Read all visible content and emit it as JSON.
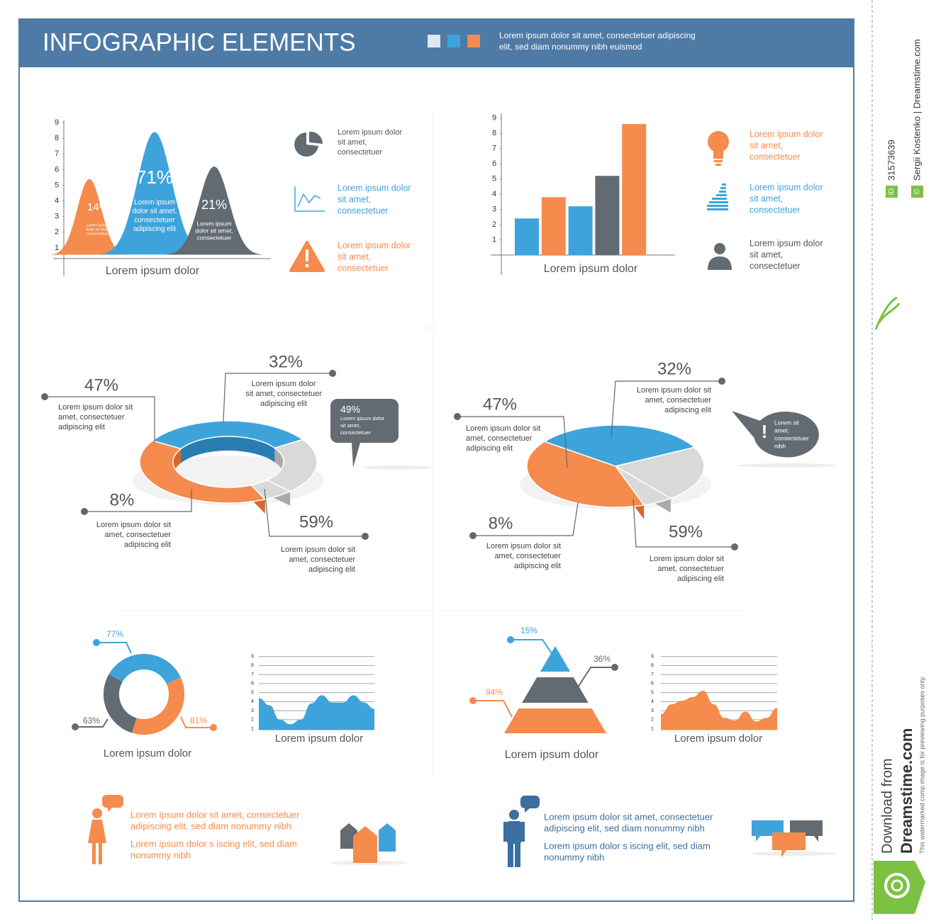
{
  "header": {
    "title": "INFOGRAPHIC ELEMENTS",
    "text": [
      "Lorem ipsum dolor sit amet, consectetuer adipiscing",
      "elit, sed diam nonummy nibh euismod"
    ]
  },
  "chart_data": [
    {
      "type": "bell",
      "values": [
        5.4,
        8.4,
        6.2
      ],
      "colors": [
        "#f58b4c",
        "#3ea3db",
        "#636b72"
      ],
      "ylim": [
        0,
        9.5
      ],
      "yticks": [
        1,
        2,
        3,
        4,
        5,
        6,
        7,
        8,
        9
      ],
      "xlabel": "Lorem ipsum dolor",
      "annotations": [
        {
          "label": "14%",
          "caption": [
            "Lorem ipsum",
            "dolor sit amet,",
            "consectetuer"
          ]
        },
        {
          "label": "71%",
          "caption": [
            "Lorem ipsum",
            "dolor sit amet,",
            "consectetuer",
            "adipiscing elit"
          ]
        },
        {
          "label": "21%",
          "caption": [
            "Lorem ipsum",
            "dolor sit amet,",
            "consectetuer"
          ]
        }
      ]
    },
    {
      "type": "bar",
      "values": [
        2.4,
        3.8,
        3.2,
        5.2,
        8.6
      ],
      "colors": [
        "#3ea3db",
        "#f58b4c",
        "#3ea3db",
        "#636b72",
        "#f58b4c"
      ],
      "ylim": [
        0,
        9.5
      ],
      "yticks": [
        1,
        2,
        3,
        4,
        5,
        6,
        7,
        8,
        9
      ],
      "xlabel": "Lorem ipsum dolor"
    },
    {
      "type": "donut3d",
      "values": [
        47,
        32,
        8,
        59
      ],
      "value_labels": [
        "47%",
        "32%",
        "8%",
        "59%"
      ],
      "colors": [
        "#3ea3db",
        "#d9d9d9",
        "#d9d9d9",
        "#f58b4c"
      ],
      "captions": [
        [
          "Lorem ipsum dolor sit",
          "amet, consectetuer",
          "adipiscing elit"
        ],
        [
          "Lorem ipsum dolor",
          "sit amet, consectetuer",
          "adipiscing elit"
        ],
        [
          "Lorem ipsum dolor sit",
          "amet, consectetuer",
          "adipiscing elit"
        ],
        [
          "Lorem ipsum dolor sit",
          "amet, consectetuer",
          "adipiscing elit"
        ]
      ],
      "callout": {
        "label": "49%",
        "text": [
          "Lorem ipsum dolor",
          "sit amet,",
          "consectetuer"
        ]
      }
    },
    {
      "type": "pie3d",
      "values": [
        47,
        32,
        8,
        59
      ],
      "value_labels": [
        "47%",
        "32%",
        "8%",
        "59%"
      ],
      "colors": [
        "#3ea3db",
        "#d9d9d9",
        "#d9d9d9",
        "#f58b4c"
      ],
      "captions": [
        [
          "Lorem ipsum dolor sit",
          "amet, consectetuer",
          "adipiscing elit"
        ],
        [
          "Lorem ipsum dolor sit",
          "amet, consectetuer",
          "adipiscing elit"
        ],
        [
          "Lorem ipsum dolor sit",
          "amet, consectetuer",
          "adipiscing elit"
        ],
        [
          "Lorem ipsum dolor sit",
          "amet, consectetuer",
          "adipiscing elit"
        ]
      ],
      "callout": {
        "label": "!",
        "text": [
          "Lorem sit",
          "amet,",
          "consectetuer",
          "nibh"
        ]
      }
    },
    {
      "type": "donut",
      "values": [
        77,
        81,
        63
      ],
      "value_labels": [
        "77%",
        "81%",
        "63%"
      ],
      "colors": [
        "#3ea3db",
        "#f58b4c",
        "#636b72"
      ],
      "xlabel": "Lorem ipsum dolor"
    },
    {
      "type": "area",
      "values": [
        4.4,
        3.6,
        2,
        1.5,
        2,
        3.8,
        4.7,
        3.9,
        3.9,
        4.7,
        3.9,
        3.2
      ],
      "color": "#3ea3db",
      "ylim": [
        0.85,
        9.3
      ],
      "yticks": [
        1,
        2,
        3,
        4,
        5,
        6,
        7,
        8,
        9
      ],
      "xlabel": "Lorem ipsum dolor"
    },
    {
      "type": "pyramid",
      "values": [
        15,
        36,
        94
      ],
      "value_labels": [
        "15%",
        "36%",
        "94%"
      ],
      "colors": [
        "#3ea3db",
        "#636b72",
        "#f58b4c"
      ],
      "xlabel": "Lorem ipsum dolor"
    },
    {
      "type": "area",
      "values": [
        2.6,
        3.7,
        4.1,
        4.5,
        5.2,
        3.7,
        2.2,
        1.9,
        2.9,
        1.8,
        2.2,
        3.3
      ],
      "color": "#f58b4c",
      "ylim": [
        0.85,
        9.3
      ],
      "yticks": [
        1,
        2,
        3,
        4,
        5,
        6,
        7,
        8,
        9
      ],
      "xlabel": "Lorem ipsum dolor"
    }
  ],
  "icon_list_left": [
    [
      "Lorem ipsum dolor",
      "sit amet,",
      "consectetuer"
    ],
    [
      "Lorem ipsum dolor",
      "sit amet,",
      "consectetuer"
    ],
    [
      "Lorem ipsum dolor",
      "sit amet,",
      "consectetuer"
    ]
  ],
  "icon_list_right": [
    [
      "Lorem ipsum dolor",
      "sit amet,",
      "consectetuer"
    ],
    [
      "Lorem ipsum dolor",
      "sit amet,",
      "consectetuer"
    ],
    [
      "Lorem ipsum dolor",
      "sit amet,",
      "consectetuer"
    ]
  ],
  "people": [
    [
      "Lorem ipsum dolor sit amet, consectetuer",
      "adipiscing elit, sed diam nonummy nibh",
      "Lorem ipsum dolor s   iscing elit, sed diam",
      "nonummy nibh"
    ],
    [
      "Lorem ipsum dolor sit amet, consectetuer",
      "adipiscing elit, sed diam nonummy nibh",
      "Lorem ipsum dolor s   iscing elit, sed diam",
      "nonummy nibh"
    ]
  ],
  "sidebar": {
    "id": "31573639",
    "id_badge": "ID",
    "credit": "Sergii  Kostenko | Dreamstime.com",
    "copyright": "©",
    "download": "Download from",
    "site": "Dreamstime.com",
    "note": "This watermarked comp image is for previewing purposes only."
  }
}
